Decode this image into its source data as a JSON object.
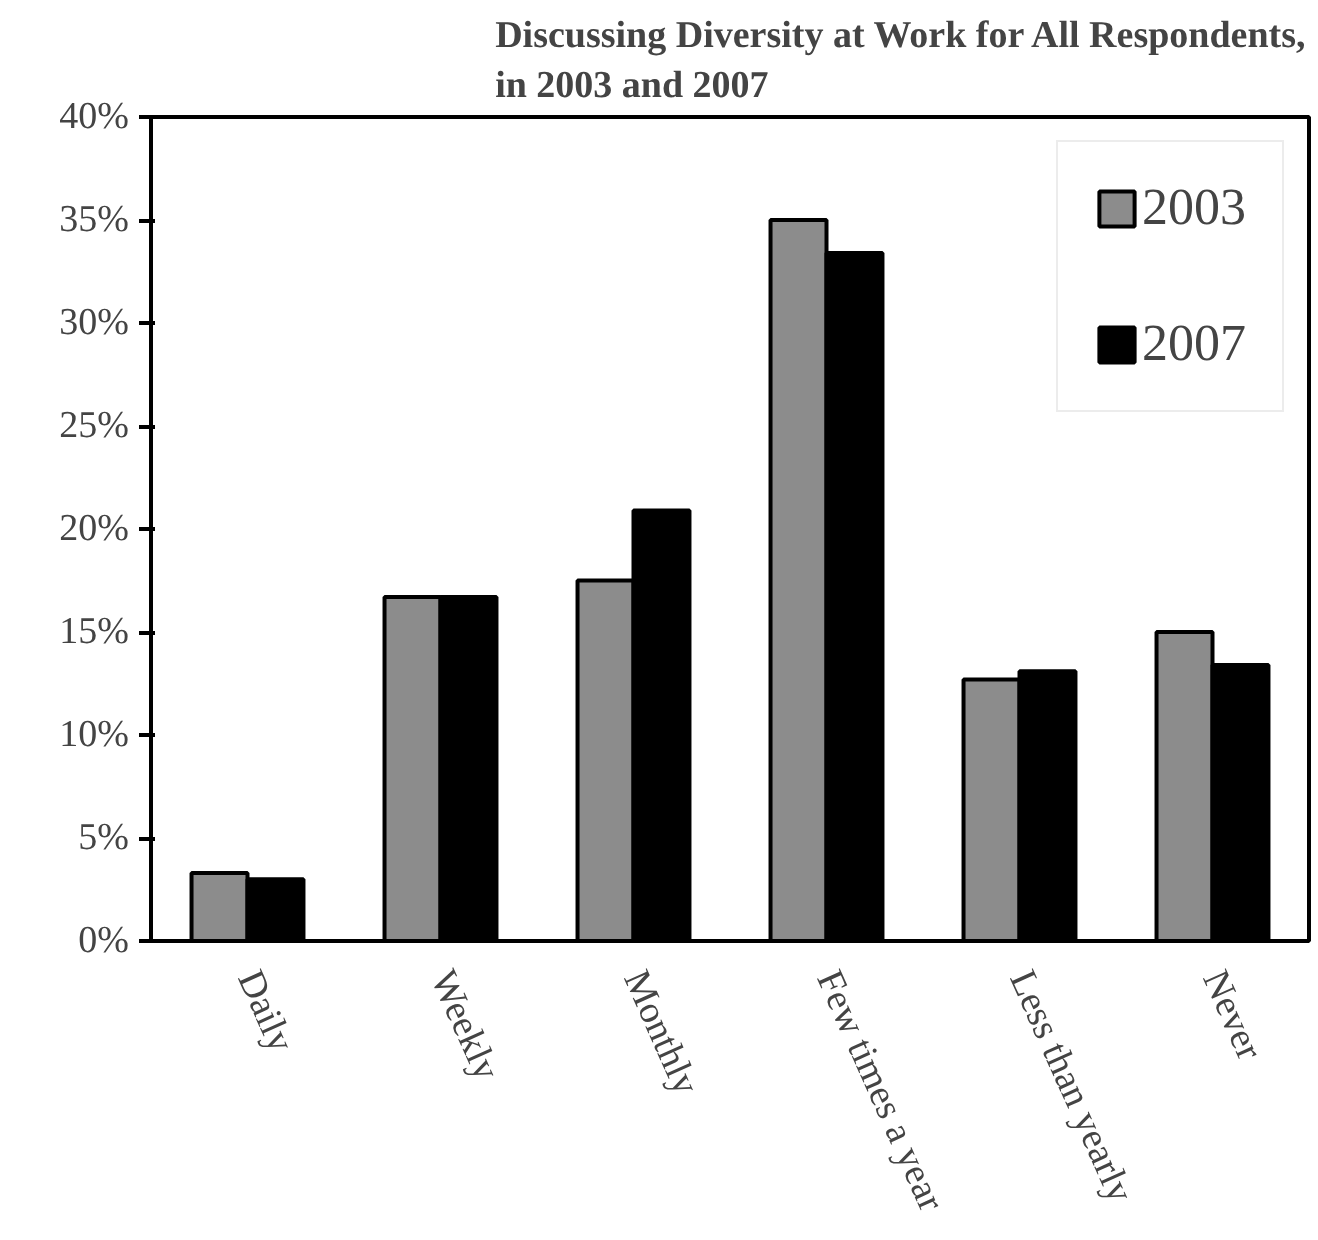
{
  "chart_data": {
    "type": "bar",
    "title": "Discussing Diversity at Work for All Respondents,\nin 2003 and 2007",
    "categories": [
      "Daily",
      "Weekly",
      "Monthly",
      "Few times a year",
      "Less than yearly",
      "Never"
    ],
    "series": [
      {
        "name": "2003",
        "color": "#8c8c8c",
        "values": [
          3.3,
          16.7,
          17.5,
          35.0,
          12.7,
          15.0
        ]
      },
      {
        "name": "2007",
        "color": "#000000",
        "values": [
          3.0,
          16.7,
          20.9,
          33.4,
          13.1,
          13.4
        ]
      }
    ],
    "ylim": [
      0,
      40
    ],
    "yticks": [
      {
        "value": 0,
        "label": "0%"
      },
      {
        "value": 5,
        "label": "5%"
      },
      {
        "value": 10,
        "label": "10%"
      },
      {
        "value": 15,
        "label": "15%"
      },
      {
        "value": 20,
        "label": "20%"
      },
      {
        "value": 25,
        "label": "25%"
      },
      {
        "value": 30,
        "label": "30%"
      },
      {
        "value": 35,
        "label": "35%"
      },
      {
        "value": 40,
        "label": "40%"
      }
    ],
    "grid": false,
    "legend": "top right"
  }
}
